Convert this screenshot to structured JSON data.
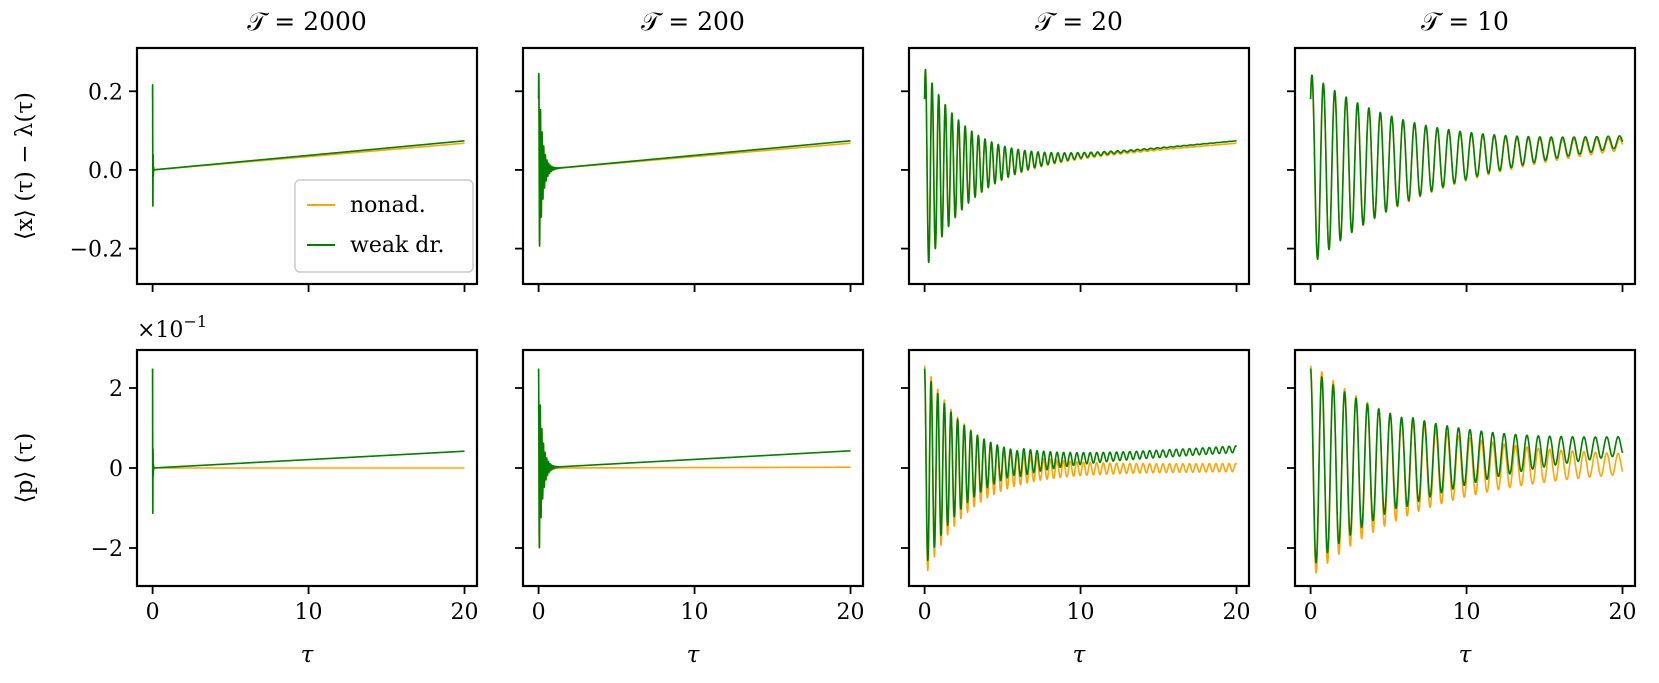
{
  "figure": {
    "columns": [
      "𝒯 = 2000",
      "𝒯 = 200",
      "𝒯 = 20",
      "𝒯 = 10"
    ],
    "T_values": [
      2000,
      200,
      20,
      10
    ],
    "row_labels": [
      "⟨x⟩ (τ) − λ(τ)",
      "⟨p⟩ (τ)"
    ],
    "x_label": "τ",
    "bottom_row_multiplier": "×10",
    "bottom_row_multiplier_exp": "−1",
    "legend": {
      "placement": "lower-right of top-left panel",
      "entries": [
        {
          "label": "nonad.",
          "color": "#FFA500"
        },
        {
          "label": "weak dr.",
          "color": "#008000"
        }
      ]
    }
  },
  "chart_data": [
    {
      "type": "line",
      "row": "top",
      "ylabel": "⟨x⟩ (τ) − λ(τ)",
      "xlim": [
        -1,
        20.8
      ],
      "ylim": [
        -0.29,
        0.31
      ],
      "x_ticks": [
        0,
        10,
        20
      ],
      "y_ticks": [
        -0.2,
        0.0,
        0.2
      ],
      "y_tick_labels": [
        "−0.2",
        "0.0",
        "0.2"
      ],
      "x_tick_labels_shown": false,
      "colors": {
        "nonad.": "#FFA500",
        "weak dr.": "#008000"
      },
      "panels": [
        {
          "T": 2000,
          "amplitude": 0.28,
          "offset": 0.2,
          "trend_end": {
            "nonad.": 0.068,
            "weak dr.": 0.074
          }
        },
        {
          "T": 200,
          "amplitude": 0.28,
          "offset": 0.2,
          "trend_end": {
            "nonad.": 0.068,
            "weak dr.": 0.074
          }
        },
        {
          "T": 20,
          "amplitude": 0.28,
          "offset": 0.2,
          "trend_end": {
            "nonad.": 0.068,
            "weak dr.": 0.074
          }
        },
        {
          "T": 10,
          "amplitude": 0.27,
          "offset": 0.2,
          "trend_end": {
            "nonad.": 0.065,
            "weak dr.": 0.072
          }
        }
      ]
    },
    {
      "type": "line",
      "row": "bottom",
      "ylabel": "⟨p⟩ (τ)",
      "xlabel": "τ",
      "xlim": [
        -1,
        20.8
      ],
      "ylim": [
        -2.95,
        2.95
      ],
      "x_ticks": [
        0,
        10,
        20
      ],
      "x_tick_labels": [
        "0",
        "10",
        "20"
      ],
      "y_ticks": [
        -2,
        0,
        2
      ],
      "y_tick_labels": [
        "−2",
        "0",
        "2"
      ],
      "colors": {
        "nonad.": "#FFA500",
        "weak dr.": "#008000"
      },
      "panels": [
        {
          "T": 2000,
          "amplitude": 2.6,
          "trend_end": {
            "nonad.": 0.0,
            "weak dr.": 0.42
          }
        },
        {
          "T": 200,
          "amplitude": 2.6,
          "trend_end": {
            "nonad.": 0.02,
            "weak dr.": 0.43
          }
        },
        {
          "T": 20,
          "amplitude": 2.6,
          "trend_end": {
            "nonad.": 0.06,
            "weak dr.": 0.47
          }
        },
        {
          "T": 10,
          "amplitude": 2.6,
          "trend_end": {
            "nonad.": 0.15,
            "weak dr.": 0.55
          }
        }
      ]
    }
  ]
}
